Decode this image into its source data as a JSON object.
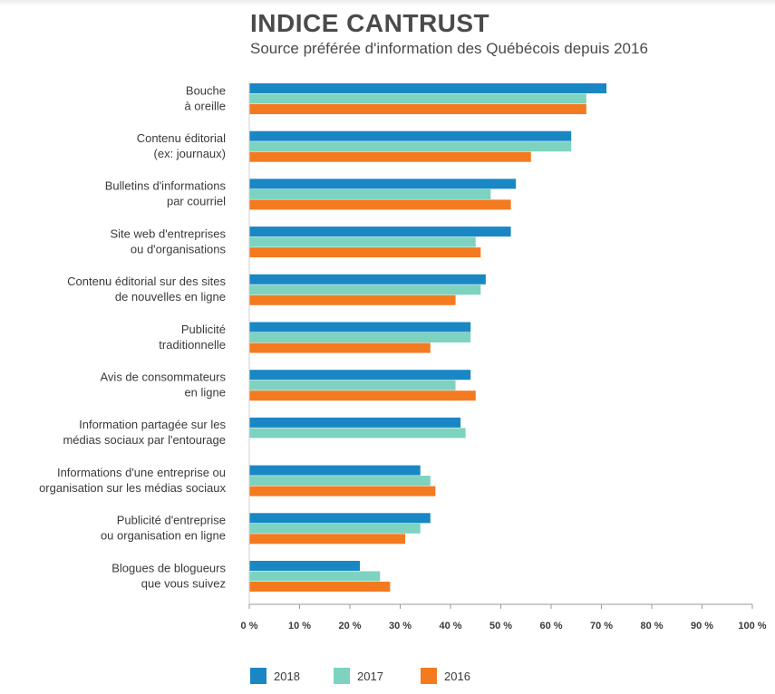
{
  "header": {
    "title": "INDICE CANTRUST",
    "subtitle": "Source préférée d'information des Québécois depuis 2016"
  },
  "chart_data": {
    "type": "bar",
    "orientation": "horizontal",
    "categories": [
      [
        "Bouche",
        "à oreille"
      ],
      [
        "Contenu éditorial",
        "(ex: journaux)"
      ],
      [
        "Bulletins d'informations",
        "par courriel"
      ],
      [
        "Site web d'entreprises",
        "ou d'organisations"
      ],
      [
        "Contenu éditorial sur des sites",
        "de nouvelles en ligne"
      ],
      [
        "Publicité",
        "traditionnelle"
      ],
      [
        "Avis de consommateurs",
        "en ligne"
      ],
      [
        "Information partagée sur les",
        "médias sociaux par l'entourage"
      ],
      [
        "Informations d'une entreprise ou",
        "organisation sur les médias sociaux"
      ],
      [
        "Publicité d'entreprise",
        "ou organisation en ligne"
      ],
      [
        "Blogues de blogueurs",
        "que vous suivez"
      ]
    ],
    "series": [
      {
        "name": "2018",
        "color": "#1a87c5",
        "values": [
          71,
          64,
          53,
          52,
          47,
          44,
          44,
          42,
          34,
          36,
          22
        ]
      },
      {
        "name": "2017",
        "color": "#7dd3c0",
        "values": [
          67,
          64,
          48,
          45,
          46,
          44,
          41,
          43,
          36,
          34,
          26
        ]
      },
      {
        "name": "2016",
        "color": "#f47a20",
        "values": [
          67,
          56,
          52,
          46,
          41,
          36,
          45,
          null,
          37,
          31,
          28
        ]
      }
    ],
    "xlim": [
      0,
      100
    ],
    "xticks": [
      "0 %",
      "10 %",
      "20 %",
      "30 %",
      "40 %",
      "50 %",
      "60 %",
      "70 %",
      "80 %",
      "90 %",
      "100 %"
    ],
    "legend_position": "bottom-left",
    "grid": false
  }
}
